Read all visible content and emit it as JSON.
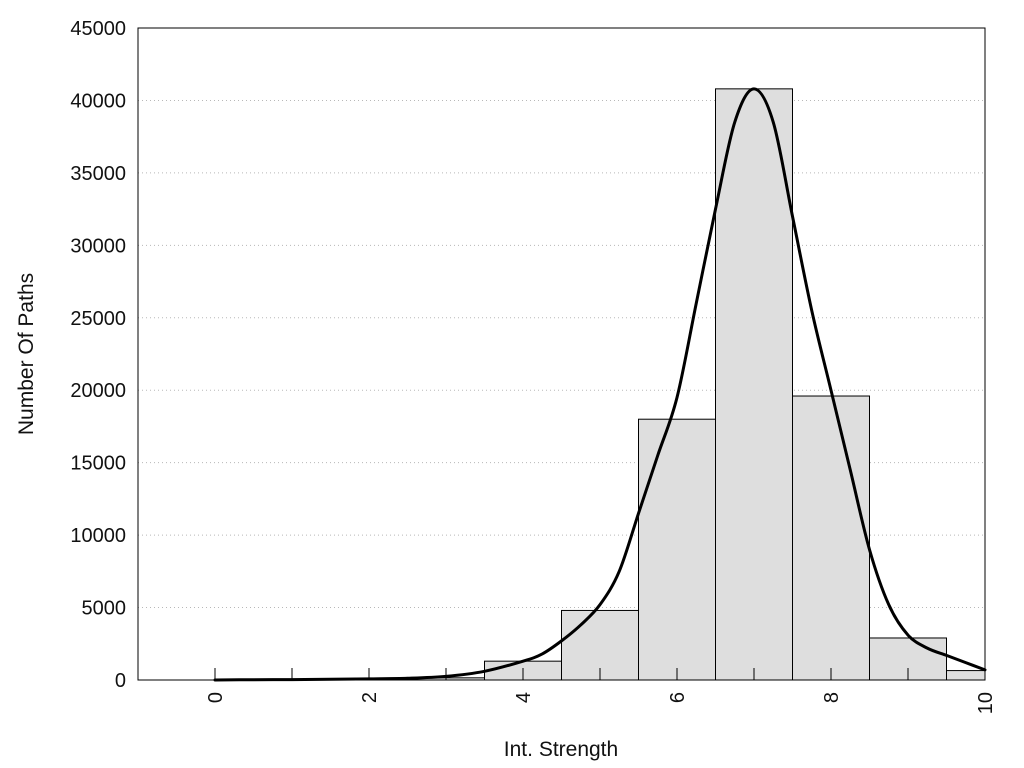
{
  "chart_data": {
    "type": "bar",
    "title": "",
    "xlabel": "Int. Strength",
    "ylabel": "Number Of Paths",
    "xlim": [
      -1,
      10
    ],
    "ylim": [
      0,
      45000
    ],
    "xticks": [
      0,
      2,
      4,
      6,
      8,
      10
    ],
    "yticks": [
      0,
      5000,
      10000,
      15000,
      20000,
      25000,
      30000,
      35000,
      40000,
      45000
    ],
    "grid": "horizontal dotted",
    "legend": "none",
    "bar_color": "#dedede",
    "bar_edge_color": "#000000",
    "curve_color": "#000000",
    "bins": [
      {
        "left": -0.5,
        "right": 0.5,
        "value": 0
      },
      {
        "left": 0.5,
        "right": 1.5,
        "value": 0
      },
      {
        "left": 1.5,
        "right": 2.5,
        "value": 50
      },
      {
        "left": 2.5,
        "right": 3.5,
        "value": 150
      },
      {
        "left": 3.5,
        "right": 4.5,
        "value": 1300
      },
      {
        "left": 4.5,
        "right": 5.5,
        "value": 4800
      },
      {
        "left": 5.5,
        "right": 6.5,
        "value": 18000
      },
      {
        "left": 6.5,
        "right": 7.5,
        "value": 40800
      },
      {
        "left": 7.5,
        "right": 8.5,
        "value": 19600
      },
      {
        "left": 8.5,
        "right": 9.5,
        "value": 2900
      },
      {
        "left": 9.5,
        "right": 10.0,
        "value": 650
      }
    ],
    "density_curve": {
      "x": [
        0,
        0.5,
        1,
        1.5,
        2,
        2.5,
        3,
        3.5,
        4,
        4.25,
        4.5,
        4.75,
        5,
        5.25,
        5.5,
        5.75,
        6,
        6.25,
        6.5,
        6.75,
        7,
        7.25,
        7.5,
        7.75,
        8,
        8.25,
        8.5,
        8.75,
        9,
        9.25,
        9.5,
        9.75,
        10
      ],
      "y": [
        0,
        20,
        30,
        50,
        80,
        120,
        250,
        600,
        1300,
        1800,
        2700,
        3800,
        5200,
        7500,
        11500,
        15500,
        19500,
        26000,
        32500,
        38500,
        40800,
        38500,
        32000,
        25500,
        20000,
        14500,
        9000,
        5200,
        3100,
        2200,
        1700,
        1200,
        700
      ]
    }
  }
}
